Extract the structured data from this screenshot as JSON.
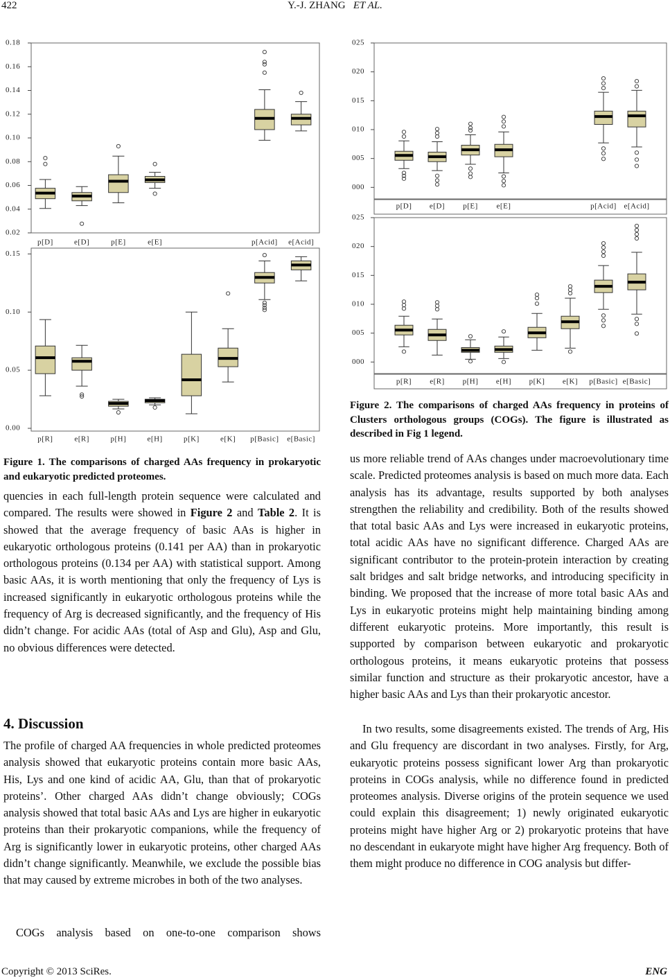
{
  "header": {
    "page_number": "422",
    "authors": "Y.-J. ZHANG",
    "et_al": "ET AL."
  },
  "chart_data": [
    {
      "type": "box",
      "color": "#d8d2a2",
      "ylim": [
        0.02,
        0.18
      ],
      "yticks": [
        0.02,
        0.04,
        0.06,
        0.08,
        {
          "value": 0.1,
          "label": "0.10"
        },
        0.12,
        0.14,
        0.16,
        0.18
      ],
      "categories": [
        "p[D]",
        "e[D]",
        "p[E]",
        "e[E]",
        null,
        null,
        "p[Acid]",
        "e[Acid]"
      ],
      "boxes": [
        {
          "whisker_low": 0.0406,
          "q1": 0.0488,
          "median": 0.0535,
          "q3": 0.0576,
          "whisker_high": 0.065,
          "outliers": [
            0.083,
            0.078
          ]
        },
        {
          "whisker_low": 0.043,
          "q1": 0.047,
          "median": 0.051,
          "q3": 0.054,
          "whisker_high": 0.059,
          "outliers": [
            0.0277
          ]
        },
        {
          "whisker_low": 0.0453,
          "q1": 0.054,
          "median": 0.0635,
          "q3": 0.069,
          "whisker_high": 0.0847,
          "outliers": [
            0.093
          ]
        },
        {
          "whisker_low": 0.0576,
          "q1": 0.0624,
          "median": 0.0647,
          "q3": 0.0676,
          "whisker_high": 0.071,
          "outliers": [
            0.078,
            0.053
          ]
        },
        null,
        null,
        {
          "whisker_low": 0.098,
          "q1": 0.107,
          "median": 0.1165,
          "q3": 0.124,
          "whisker_high": 0.1406,
          "outliers": [
            0.1724,
            0.164,
            0.162,
            0.155
          ]
        },
        {
          "whisker_low": 0.1059,
          "q1": 0.111,
          "median": 0.1165,
          "q3": 0.12,
          "whisker_high": 0.1306,
          "outliers": [
            0.138
          ]
        }
      ]
    },
    {
      "type": "box",
      "color": "#d8d2a2",
      "ylim": [
        0,
        0.155
      ],
      "yticks": [
        {
          "value": 0,
          "label": "0.00"
        },
        0.05,
        {
          "value": 0.1,
          "label": "0.10"
        },
        0.15
      ],
      "categories": [
        "p[R]",
        "e[R]",
        "p[H]",
        "e[H]",
        "p[K]",
        "e[K]",
        "p[Basic]",
        "e[Basic]"
      ],
      "boxes": [
        {
          "whisker_low": 0.028,
          "q1": 0.047,
          "median": 0.0607,
          "q3": 0.0708,
          "whisker_high": 0.0935,
          "outliers": []
        },
        {
          "whisker_low": 0.0363,
          "q1": 0.05,
          "median": 0.0577,
          "q3": 0.0607,
          "whisker_high": 0.0714,
          "outliers": [
            0.029,
            0.0274
          ]
        },
        {
          "whisker_low": 0.0167,
          "q1": 0.019,
          "median": 0.0214,
          "q3": 0.0232,
          "whisker_high": 0.025,
          "outliers": [
            0.0137
          ]
        },
        {
          "whisker_low": 0.0202,
          "q1": 0.022,
          "median": 0.0238,
          "q3": 0.025,
          "whisker_high": 0.0262,
          "outliers": [
            0.0179
          ]
        },
        {
          "whisker_low": 0.0125,
          "q1": 0.028,
          "median": 0.0417,
          "q3": 0.0637,
          "whisker_high": 0.1,
          "outliers": []
        },
        {
          "whisker_low": 0.0399,
          "q1": 0.053,
          "median": 0.0601,
          "q3": 0.069,
          "whisker_high": 0.0857,
          "outliers": [
            0.116
          ]
        },
        {
          "whisker_low": 0.1107,
          "q1": 0.125,
          "median": 0.1298,
          "q3": 0.134,
          "whisker_high": 0.144,
          "outliers": [
            0.149,
            0.108,
            0.106,
            0.1036,
            0.1018
          ]
        },
        {
          "whisker_low": 0.1268,
          "q1": 0.1363,
          "median": 0.1405,
          "q3": 0.144,
          "whisker_high": 0.1476,
          "outliers": []
        }
      ]
    },
    {
      "type": "box",
      "color": "#d8d2a2",
      "ylim": [
        -0.02,
        0.25
      ],
      "yticks": [
        {
          "value": 0,
          "label": "000"
        },
        {
          "value": 0.05,
          "label": "005"
        },
        {
          "value": 0.1,
          "label": "010"
        },
        {
          "value": 0.15,
          "label": "015"
        },
        {
          "value": 0.2,
          "label": "020"
        },
        {
          "value": 0.25,
          "label": "025"
        }
      ],
      "categories": [
        "p[D]",
        "e[D]",
        "p[E]",
        "e[E]",
        null,
        null,
        "p[Acid]",
        "e[Acid]"
      ],
      "boxes": [
        {
          "whisker_low": 0.0325,
          "q1": 0.0469,
          "median": 0.0553,
          "q3": 0.0625,
          "whisker_high": 0.0805,
          "outliers": [
            0.096,
            0.088,
            0.025,
            0.02,
            0.015
          ]
        },
        {
          "whisker_low": 0.029,
          "q1": 0.0445,
          "median": 0.053,
          "q3": 0.061,
          "whisker_high": 0.079,
          "outliers": [
            0.101,
            0.094,
            0.088,
            0.02,
            0.012,
            0.005
          ]
        },
        {
          "whisker_low": 0.04,
          "q1": 0.056,
          "median": 0.065,
          "q3": 0.073,
          "whisker_high": 0.091,
          "outliers": [
            0.11,
            0.103,
            0.0985,
            0.0325,
            0.024,
            0.018
          ]
        },
        {
          "whisker_low": 0.025,
          "q1": 0.053,
          "median": 0.065,
          "q3": 0.0745,
          "whisker_high": 0.096,
          "outliers": [
            0.122,
            0.114,
            0.1055,
            0.019,
            0.011,
            0.0036
          ]
        },
        null,
        null,
        {
          "whisker_low": 0.077,
          "q1": 0.109,
          "median": 0.1226,
          "q3": 0.132,
          "whisker_high": 0.1646,
          "outliers": [
            0.1887,
            0.18,
            0.1719,
            0.0673,
            0.0589,
            0.0493
          ]
        },
        {
          "whisker_low": 0.07,
          "q1": 0.1046,
          "median": 0.1238,
          "q3": 0.132,
          "whisker_high": 0.168,
          "outliers": [
            0.1839,
            0.175,
            0.0601,
            0.048,
            0.037
          ]
        }
      ]
    },
    {
      "type": "box",
      "color": "#d8d2a2",
      "ylim": [
        -0.02,
        0.25
      ],
      "yticks": [
        {
          "value": 0,
          "label": "000"
        },
        {
          "value": 0.05,
          "label": "005"
        },
        {
          "value": 0.1,
          "label": "010"
        },
        {
          "value": 0.15,
          "label": "015"
        },
        {
          "value": 0.2,
          "label": "020"
        },
        {
          "value": 0.25,
          "label": "025"
        }
      ],
      "categories": [
        "p[R]",
        "e[R]",
        "p[H]",
        "e[H]",
        "p[K]",
        "e[K]",
        "p[Basic]",
        "e[Basic]"
      ],
      "boxes": [
        {
          "whisker_low": 0.0264,
          "q1": 0.0469,
          "median": 0.0553,
          "q3": 0.0637,
          "whisker_high": 0.0793,
          "outliers": [
            0.1046,
            0.0986,
            0.0925,
            0.018
          ]
        },
        {
          "whisker_low": 0.012,
          "q1": 0.0373,
          "median": 0.0469,
          "q3": 0.0565,
          "whisker_high": 0.0745,
          "outliers": [
            0.1034,
            0.0974,
            0.0913
          ]
        },
        {
          "whisker_low": 0.0048,
          "q1": 0.0168,
          "median": 0.0204,
          "q3": 0.025,
          "whisker_high": 0.0385,
          "outliers": [
            0.0445,
            0.0012
          ]
        },
        {
          "whisker_low": 0.006,
          "q1": 0.0168,
          "median": 0.0216,
          "q3": 0.0276,
          "whisker_high": 0.0433,
          "outliers": [
            0.053,
            0
          ]
        },
        {
          "whisker_low": 0.0204,
          "q1": 0.042,
          "median": 0.0505,
          "q3": 0.0601,
          "whisker_high": 0.0841,
          "outliers": [
            0.1166,
            0.1106,
            0.101
          ]
        },
        {
          "whisker_low": 0.024,
          "q1": 0.0577,
          "median": 0.0697,
          "q3": 0.0793,
          "whisker_high": 0.1106,
          "outliers": [
            0.131,
            0.125,
            0.119,
            0.018
          ]
        },
        {
          "whisker_low": 0.0913,
          "q1": 0.1202,
          "median": 0.131,
          "q3": 0.1418,
          "whisker_high": 0.167,
          "outliers": [
            0.2055,
            0.1983,
            0.191,
            0.184,
            0.0805,
            0.0721,
            0.0625
          ]
        },
        {
          "whisker_low": 0.0829,
          "q1": 0.125,
          "median": 0.1382,
          "q3": 0.1526,
          "whisker_high": 0.19,
          "outliers": [
            0.2356,
            0.2284,
            0.2212,
            0.214,
            0.0745,
            0.066,
            0.0493
          ]
        }
      ]
    }
  ],
  "figure1_caption": "Figure 1. The comparisons of charged AAs frequency in prokaryotic and eukaryotic predicted proteomes.",
  "figure2_caption": "Figure 2. The comparisons of charged AAs frequency in proteins of Clusters orthologous groups (COGs). The figure is illustrated as described in Fig 1 legend.",
  "left_column": {
    "paragraph_1": [
      "quencies in each full-length protein sequence were calculated and compared. The results were showed in ",
      "Figure 2",
      " and ",
      "Table 2",
      ". It is showed that the average frequency of basic AAs is higher in eukaryotic orthologous proteins (0.141 per AA) than in prokaryotic orthologous proteins (0.134 per AA) with statistical support. Among basic AAs, it is worth mentioning that only the frequency of Lys is increased significantly in eukaryotic orthologous proteins while the frequency of Arg is decreased significantly, and the frequency of His didn’t change. For acidic AAs (total of Asp and Glu), Asp and Glu, no obvious differences were detected."
    ],
    "heading": "4. Discussion",
    "paragraph_2": "The profile of charged AA frequencies in whole predicted proteomes analysis showed that eukaryotic proteins contain more basic AAs, His, Lys and one kind of acidic AA, Glu, than that of prokaryotic proteins’. Other charged AAs didn’t change obviously; COGs analysis showed that total basic AAs and Lys are higher in eukaryotic proteins than their prokaryotic companions, while the frequency of Arg is significantly lower in eukaryotic proteins, other charged AAs didn’t change significantly. Meanwhile, we exclude the possible bias that may caused by extreme microbes in both of the two analyses.",
    "paragraph_3": "COGs analysis based on one-to-one comparison shows"
  },
  "right_column": {
    "paragraph_1": "us more reliable trend of AAs changes under macroevolutionary time scale. Predicted proteomes analysis is based on much more data. Each analysis has its advantage, results supported by both analyses strengthen the reliability and credibility. Both of the results showed that total basic AAs and Lys were increased in eukaryotic proteins, total acidic AAs have no significant difference. Charged AAs are significant contributor to the protein-protein interaction by creating salt bridges and salt bridge networks, and introducing specificity in binding. We proposed that the increase of more total basic AAs and Lys in eukaryotic proteins might help maintaining binding among different eukaryotic proteins. More importantly, this result is supported by comparison between eukaryotic and prokaryotic orthologous proteins, it means eukaryotic proteins that possess similar function and structure as their prokaryotic ancestor, have a higher basic AAs and Lys than their prokaryotic ancestor.",
    "paragraph_2": "In two results, some disagreements existed. The trends of Arg, His and Glu frequency are discordant in two analyses. Firstly, for Arg, eukaryotic proteins possess significant lower Arg than prokaryotic proteins in COGs analysis, while no difference found in predicted proteomes analysis. Diverse origins of the protein sequence we used could explain this disagreement; 1) newly originated eukaryotic proteins might have higher Arg or 2) prokaryotic proteins that have no descendant in eukaryote might have higher Arg frequency. Both of them might produce no difference in COG analysis but differ-"
  },
  "footer": {
    "copyright": "Copyright © 2013 SciRes.",
    "journal": "ENG"
  }
}
